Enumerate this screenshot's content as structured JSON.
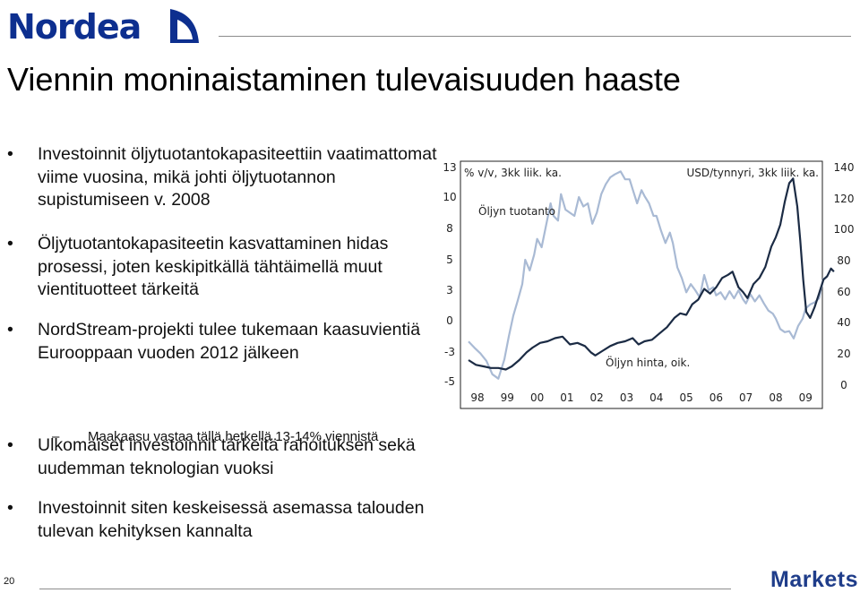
{
  "brand": {
    "logo_text": "Nordea",
    "footer_text": "Markets",
    "color": "#0d2f8f",
    "logo_icon": "sail-icon"
  },
  "slide": {
    "title": "Viennin moninaistaminen tulevaisuuden haaste",
    "number": "20",
    "bullets": [
      {
        "text": "Investoinnit öljytuotantokapasiteettiin vaatimattomat viime vuosina, mikä johti öljytuotannon supistumiseen v. 2008"
      },
      {
        "text": "Öljytuotantokapasiteetin kasvattaminen hidas prosessi, joten keskipitkällä tähtäimellä muut vientituotteet tärkeitä"
      },
      {
        "text": "NordStream-projekti tulee tukemaan kaasuvientiä Eurooppaan vuoden 2012 jälkeen"
      },
      {
        "text": "Ulkomaiset investoinnit tärkeitä rahoituksen sekä uudemman teknologian vuoksi"
      },
      {
        "text": "Investoinnit siten keskeisessä asemassa talouden tulevan kehityksen kannalta"
      }
    ],
    "sub_bullet": "Maakaasu vastaa tällä hetkellä 13-14% viennistä",
    "bullet_symbol": "•",
    "dash_symbol": "–"
  },
  "chart_data": {
    "type": "line",
    "left_axis_label": "% v/v, 3kk liik. ka.",
    "right_axis_label": "USD/tynnyri, 3kk liik. ka.",
    "x_ticks": [
      "98",
      "99",
      "00",
      "01",
      "02",
      "03",
      "04",
      "05",
      "06",
      "07",
      "08",
      "09"
    ],
    "left_ticks": [
      "13",
      "10",
      "8",
      "5",
      "3",
      "0",
      "-3",
      "-5"
    ],
    "left_tick_values": [
      13,
      10,
      8,
      5,
      3,
      0,
      -3,
      -5
    ],
    "right_ticks": [
      "140",
      "120",
      "100",
      "80",
      "60",
      "40",
      "20",
      "0"
    ],
    "right_tick_values": [
      140,
      120,
      100,
      80,
      60,
      40,
      20,
      0
    ],
    "ylim_left": [
      -5,
      13
    ],
    "ylim_right": [
      0,
      140
    ],
    "xlim": [
      1997.5,
      2010.0
    ],
    "series": [
      {
        "name": "Öljyn tuotanto",
        "axis": "left",
        "color": "#a9bad4",
        "points": [
          [
            1997.7,
            -2.0
          ],
          [
            1997.9,
            -2.6
          ],
          [
            1998.1,
            -3.1
          ],
          [
            1998.3,
            -3.6
          ],
          [
            1998.5,
            -4.5
          ],
          [
            1998.7,
            -4.8
          ],
          [
            1998.9,
            -3.5
          ],
          [
            1999.05,
            -1.5
          ],
          [
            1999.2,
            0.5
          ],
          [
            1999.35,
            2.0
          ],
          [
            1999.5,
            3.4
          ],
          [
            1999.6,
            5.0
          ],
          [
            1999.75,
            4.3
          ],
          [
            1999.9,
            5.5
          ],
          [
            2000.0,
            7.0
          ],
          [
            2000.15,
            6.2
          ],
          [
            2000.3,
            8.2
          ],
          [
            2000.45,
            9.6
          ],
          [
            2000.55,
            8.8
          ],
          [
            2000.7,
            8.5
          ],
          [
            2000.8,
            10.3
          ],
          [
            2000.95,
            9.2
          ],
          [
            2001.1,
            9.0
          ],
          [
            2001.25,
            8.8
          ],
          [
            2001.4,
            10.0
          ],
          [
            2001.55,
            9.4
          ],
          [
            2001.7,
            9.6
          ],
          [
            2001.85,
            8.3
          ],
          [
            2002.0,
            9.0
          ],
          [
            2002.15,
            10.3
          ],
          [
            2002.3,
            11.3
          ],
          [
            2002.45,
            12.0
          ],
          [
            2002.6,
            12.3
          ],
          [
            2002.8,
            12.6
          ],
          [
            2002.95,
            11.8
          ],
          [
            2003.1,
            11.8
          ],
          [
            2003.2,
            10.8
          ],
          [
            2003.35,
            9.6
          ],
          [
            2003.5,
            10.7
          ],
          [
            2003.6,
            10.1
          ],
          [
            2003.75,
            9.6
          ],
          [
            2003.9,
            8.8
          ],
          [
            2004.0,
            8.8
          ],
          [
            2004.15,
            7.8
          ],
          [
            2004.3,
            6.6
          ],
          [
            2004.45,
            7.6
          ],
          [
            2004.55,
            6.6
          ],
          [
            2004.7,
            4.5
          ],
          [
            2004.85,
            3.8
          ],
          [
            2005.0,
            2.8
          ],
          [
            2005.15,
            3.4
          ],
          [
            2005.3,
            3.0
          ],
          [
            2005.45,
            2.3
          ],
          [
            2005.6,
            4.0
          ],
          [
            2005.75,
            3.0
          ],
          [
            2005.9,
            3.2
          ],
          [
            2006.0,
            2.5
          ],
          [
            2006.15,
            2.8
          ],
          [
            2006.3,
            2.1
          ],
          [
            2006.45,
            2.9
          ],
          [
            2006.6,
            2.2
          ],
          [
            2006.75,
            3.0
          ],
          [
            2006.9,
            2.1
          ],
          [
            2007.0,
            1.7
          ],
          [
            2007.15,
            2.6
          ],
          [
            2007.3,
            1.9
          ],
          [
            2007.45,
            2.5
          ],
          [
            2007.6,
            1.7
          ],
          [
            2007.75,
            1.0
          ],
          [
            2007.9,
            0.7
          ],
          [
            2008.0,
            0.2
          ],
          [
            2008.15,
            -0.8
          ],
          [
            2008.3,
            -1.1
          ],
          [
            2008.45,
            -1.0
          ],
          [
            2008.6,
            -1.7
          ],
          [
            2008.75,
            -0.5
          ],
          [
            2008.9,
            0.2
          ],
          [
            2009.0,
            1.2
          ],
          [
            2009.15,
            1.6
          ],
          [
            2009.3,
            1.8
          ],
          [
            2009.45,
            2.2
          ],
          [
            2009.6,
            3.8
          ]
        ]
      },
      {
        "name": "Öljyn hinta, oik.",
        "axis": "right",
        "color": "#1b2b44",
        "points": [
          [
            1997.7,
            16
          ],
          [
            1997.95,
            13
          ],
          [
            1998.2,
            12
          ],
          [
            1998.45,
            11
          ],
          [
            1998.7,
            11
          ],
          [
            1998.95,
            10
          ],
          [
            1999.15,
            12
          ],
          [
            1999.4,
            16
          ],
          [
            1999.65,
            21
          ],
          [
            1999.85,
            24
          ],
          [
            2000.1,
            27
          ],
          [
            2000.35,
            28
          ],
          [
            2000.6,
            30
          ],
          [
            2000.85,
            31
          ],
          [
            2001.1,
            26
          ],
          [
            2001.35,
            27
          ],
          [
            2001.6,
            25
          ],
          [
            2001.8,
            21
          ],
          [
            2001.95,
            19
          ],
          [
            2002.2,
            22
          ],
          [
            2002.45,
            25
          ],
          [
            2002.7,
            27
          ],
          [
            2002.95,
            28
          ],
          [
            2003.2,
            30
          ],
          [
            2003.4,
            26
          ],
          [
            2003.6,
            28
          ],
          [
            2003.85,
            29
          ],
          [
            2004.1,
            33
          ],
          [
            2004.35,
            37
          ],
          [
            2004.6,
            43
          ],
          [
            2004.8,
            46
          ],
          [
            2005.0,
            45
          ],
          [
            2005.2,
            52
          ],
          [
            2005.4,
            55
          ],
          [
            2005.6,
            62
          ],
          [
            2005.8,
            59
          ],
          [
            2006.0,
            63
          ],
          [
            2006.2,
            69
          ],
          [
            2006.4,
            71
          ],
          [
            2006.55,
            73
          ],
          [
            2006.75,
            63
          ],
          [
            2006.9,
            60
          ],
          [
            2007.05,
            56
          ],
          [
            2007.25,
            65
          ],
          [
            2007.45,
            69
          ],
          [
            2007.65,
            76
          ],
          [
            2007.85,
            89
          ],
          [
            2008.0,
            95
          ],
          [
            2008.15,
            103
          ],
          [
            2008.3,
            118
          ],
          [
            2008.45,
            130
          ],
          [
            2008.58,
            133
          ],
          [
            2008.72,
            115
          ],
          [
            2008.82,
            93
          ],
          [
            2008.92,
            68
          ],
          [
            2009.02,
            47
          ],
          [
            2009.15,
            43
          ],
          [
            2009.3,
            50
          ],
          [
            2009.45,
            59
          ],
          [
            2009.6,
            68
          ],
          [
            2009.72,
            70
          ],
          [
            2009.85,
            75
          ],
          [
            2009.95,
            73
          ]
        ]
      }
    ],
    "annotations": [
      {
        "text": "Öljyn tuotanto",
        "series": "Öljyn tuotanto"
      },
      {
        "text": "Öljyn hinta, oik.",
        "series": "Öljyn hinta, oik."
      }
    ],
    "grid": false
  }
}
